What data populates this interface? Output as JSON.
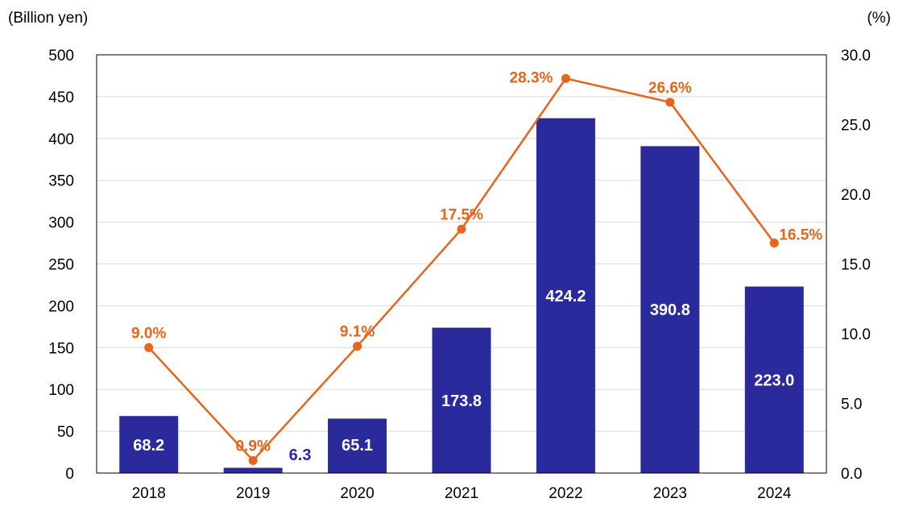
{
  "chart_data": {
    "type": "bar",
    "categories": [
      "2018",
      "2019",
      "2020",
      "2021",
      "2022",
      "2023",
      "2024"
    ],
    "series": [
      {
        "kind": "bar",
        "axis": "left",
        "values": [
          68.2,
          6.3,
          65.1,
          173.8,
          424.2,
          390.8,
          223.0
        ],
        "labels": [
          "68.2",
          "6.3",
          "65.1",
          "173.8",
          "424.2",
          "390.8",
          "223.0"
        ],
        "color": "#2B2A9C"
      },
      {
        "kind": "line",
        "axis": "right",
        "values": [
          9.0,
          0.9,
          9.1,
          17.5,
          28.3,
          26.6,
          16.5
        ],
        "labels": [
          "9.0%",
          "0.9%",
          "9.1%",
          "17.5%",
          "28.3%",
          "26.6%",
          "16.5%"
        ],
        "color": "#E8641B"
      }
    ],
    "ylabel": "(Billion yen)",
    "y2label": "(%)",
    "ylim": [
      0,
      500
    ],
    "y2lim": [
      0,
      30
    ],
    "yticks": [
      "0",
      "50",
      "100",
      "150",
      "200",
      "250",
      "300",
      "350",
      "400",
      "450",
      "500"
    ],
    "y2ticks": [
      "0.0",
      "5.0",
      "10.0",
      "15.0",
      "20.0",
      "25.0",
      "30.0"
    ],
    "grid": true,
    "legend": "none",
    "colors": {
      "bar_label_inside": "#FFFFFF",
      "bar_label_outside": "#2B2A9C",
      "grid": "#D9D9D9",
      "axis": "#000000"
    }
  }
}
